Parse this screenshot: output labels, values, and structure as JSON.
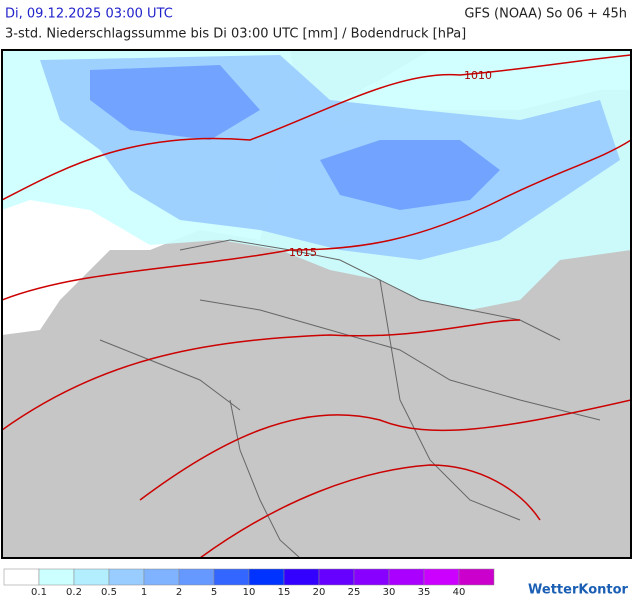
{
  "header": {
    "date": "Di, 09.12.2025 03:00 UTC",
    "model": "GFS (NOAA) So 06 + 45h",
    "subtitle": "3-std. Niederschlagssumme bis Di 03:00 UTC [mm] / Bodendruck [hPa]"
  },
  "map": {
    "isobars": [
      "1010",
      "1015"
    ]
  },
  "legend": {
    "colors": [
      "#ffffff",
      "#ccffff",
      "#b3eeff",
      "#99ccff",
      "#80b3ff",
      "#6699ff",
      "#3366ff",
      "#0033ff",
      "#3300ff",
      "#6600ff",
      "#8800ff",
      "#aa00ff",
      "#cc00ff",
      "#cc00cc"
    ],
    "labels": [
      0.1,
      0.2,
      0.5,
      1,
      2,
      5,
      10,
      15,
      20,
      25,
      30,
      35,
      40
    ]
  },
  "logo": "WetterKontor"
}
